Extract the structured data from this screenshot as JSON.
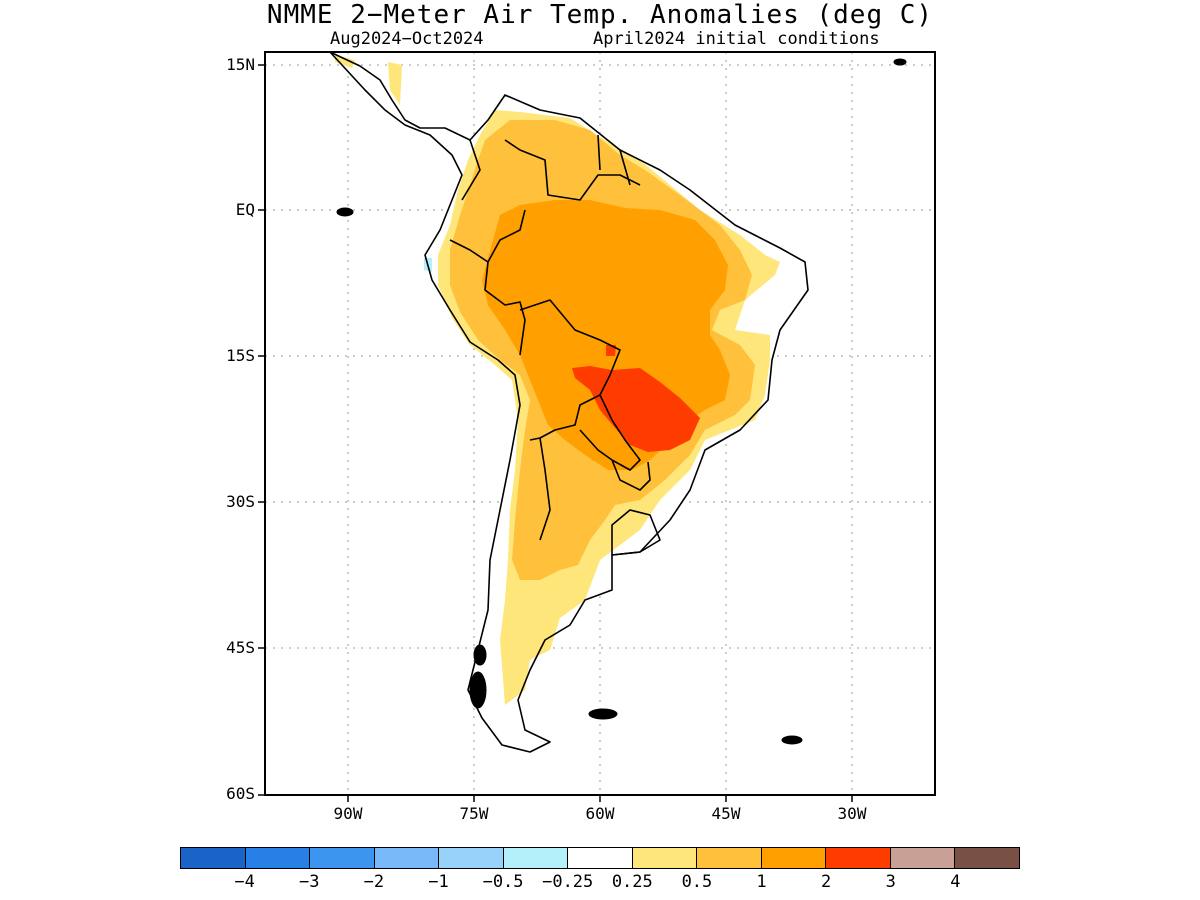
{
  "figure": {
    "title": "NMME 2−Meter Air Temp. Anomalies (deg C)",
    "period": "Aug2024−Oct2024",
    "initial_conditions": "April2024 initial conditions"
  },
  "axes": {
    "lat_labels": [
      "15N",
      "EQ",
      "15S",
      "30S",
      "45S",
      "60S"
    ],
    "lon_labels": [
      "90W",
      "75W",
      "60W",
      "45W",
      "30W"
    ]
  },
  "colorbar": {
    "colors": [
      "#1a64c8",
      "#2680e6",
      "#3c96f0",
      "#78b9fa",
      "#96d2fa",
      "#b4f0fa",
      "#ffffff",
      "#ffe67a",
      "#ffc03c",
      "#ffa000",
      "#ff3c00",
      "#c8a096",
      "#785046"
    ],
    "labels": [
      "−4",
      "−3",
      "−2",
      "−1",
      "−0.5",
      "−0.25",
      "0.25",
      "0.5",
      "1",
      "2",
      "3",
      "4"
    ]
  },
  "map_regions": [
    {
      "name": "northern South America and Amazon basin",
      "anomaly_range": "1 to 2"
    },
    {
      "name": "central Brazil, Paraguay and southern Mato Grosso",
      "anomaly_range": "2 to 3"
    },
    {
      "name": "northern Andes and western Amazon margin",
      "anomaly_range": "0.5 to 1"
    },
    {
      "name": "northeast Brazil coast",
      "anomaly_range": "-0.25 to 0.25"
    },
    {
      "name": "northern Argentina",
      "anomaly_range": "0.5 to 1"
    },
    {
      "name": "central Argentina and Chile",
      "anomaly_range": "0.25 to 0.5"
    },
    {
      "name": "Uruguay and southern Brazil coast",
      "anomaly_range": "-0.25 to 0.25"
    },
    {
      "name": "Patagonia",
      "anomaly_range": "-0.25 to 0.25"
    },
    {
      "name": "coastal Ecuador",
      "anomaly_range": "-0.5 to -0.25"
    }
  ]
}
